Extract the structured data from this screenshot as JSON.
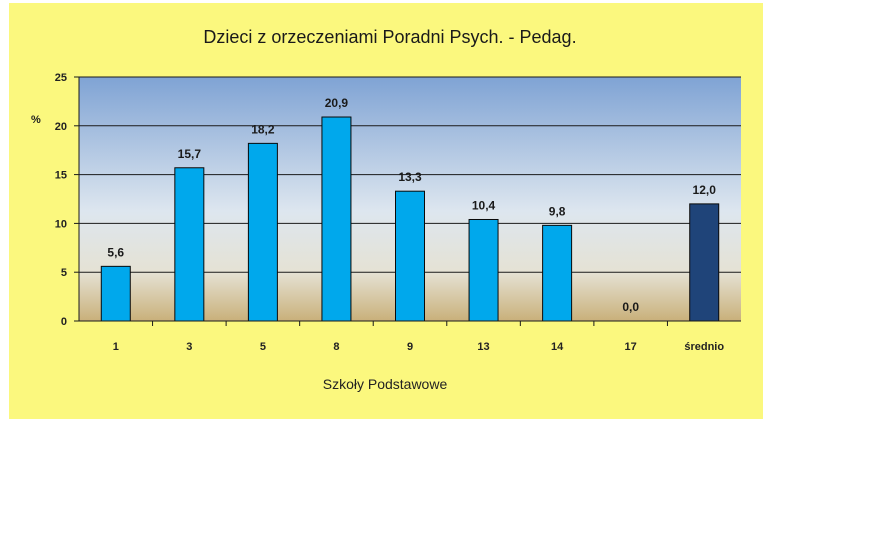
{
  "chart_data": {
    "type": "bar",
    "title": "Dzieci  z orzeczeniami  Poradni  Psych. - Pedag.",
    "xlabel": "Szkoły Podstawowe",
    "ylabel": "%",
    "ylim": [
      0,
      25
    ],
    "yticks": [
      "0",
      "5",
      "10",
      "15",
      "20",
      "25"
    ],
    "categories": [
      "1",
      "3",
      "5",
      "8",
      "9",
      "13",
      "14",
      "17",
      "średnio"
    ],
    "values": [
      5.6,
      15.7,
      18.2,
      20.9,
      13.3,
      10.4,
      9.8,
      0.0,
      12.0
    ],
    "data_labels": [
      "5,6",
      "15,7",
      "18,2",
      "20,9",
      "13,3",
      "10,4",
      "9,8",
      "0,0",
      "12,0"
    ],
    "grid": true,
    "legend": "none",
    "colors": {
      "panel_background": "#fbf87e",
      "plot_top": "#7fa3d4",
      "plot_bottom": "#c9b07a",
      "bar": "#00a8ec",
      "bar_highlight": "#1f4479",
      "bar_outline": "#0a0a0a"
    }
  }
}
